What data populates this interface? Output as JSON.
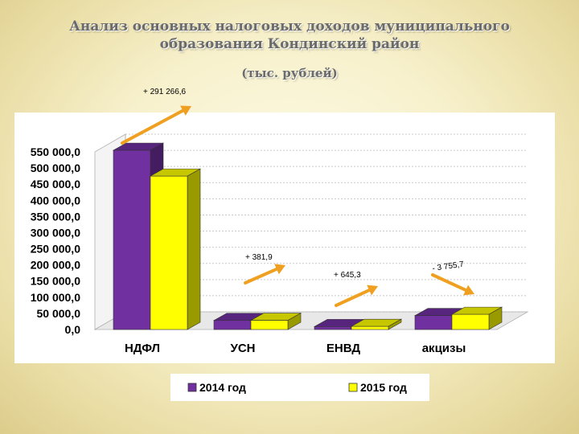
{
  "title_line1": "Анализ основных налоговых доходов муниципального",
  "title_line2": "образования Кондинский район",
  "subtitle": "(тыс. рублей)",
  "chart_data": {
    "type": "bar",
    "categories": [
      "НДФЛ",
      "УСН",
      "ЕНВД",
      "акцизы"
    ],
    "series": [
      {
        "name": "2014 год",
        "values": [
          555000,
          28000,
          9000,
          43000
        ],
        "color": "#7030a0"
      },
      {
        "name": "2015 год",
        "values": [
          475000,
          28400,
          9600,
          47000
        ],
        "color": "#ffff00"
      }
    ],
    "ylim": [
      0,
      550000
    ],
    "yticks": [
      0,
      50000,
      100000,
      150000,
      200000,
      250000,
      300000,
      350000,
      400000,
      450000,
      500000,
      550000
    ],
    "ytick_labels": [
      "0,0",
      "50 000,0",
      "100 000,0",
      "150 000,0",
      "200 000,0",
      "250 000,0",
      "300 000,0",
      "350 000,0",
      "400 000,0",
      "450 000,0",
      "500 000,0",
      "550 000,0"
    ],
    "grid": true,
    "legend_position": "bottom",
    "annotations": [
      {
        "text": "+ 291 266,6",
        "category": "НДФЛ",
        "direction": "up"
      },
      {
        "text": "+ 381,9",
        "category": "УСН",
        "direction": "up"
      },
      {
        "text": "+ 645,3",
        "category": "ЕНВД",
        "direction": "up"
      },
      {
        "text": "- 3 755,7",
        "category": "акцизы",
        "direction": "down"
      }
    ],
    "arrow_color": "#f0a020"
  }
}
